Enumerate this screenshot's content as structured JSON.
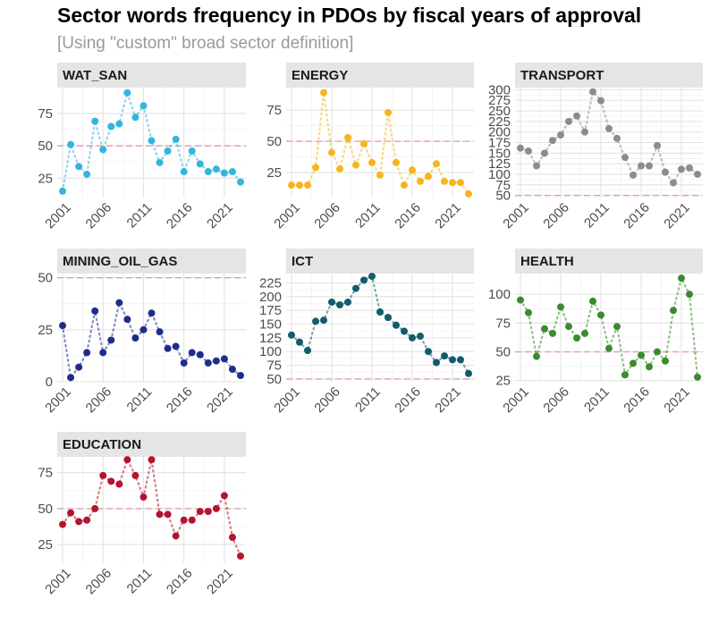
{
  "title": "Sector words frequency in PDOs by fiscal years of approval",
  "subtitle": "[Using \"custom\" broad sector definition]",
  "chart_data": {
    "type": "scatter",
    "x_ticks": [
      "2001",
      "2006",
      "2011",
      "2016",
      "2021"
    ],
    "x_range": [
      2001,
      2023
    ],
    "reference_line_color": "#e0a0b0",
    "panels": [
      {
        "name": "WAT_SAN",
        "color": "#33b5e0",
        "ref": 50,
        "ylim": [
          10,
          95
        ],
        "yticks": [
          25,
          50,
          75
        ],
        "x": [
          2001,
          2002,
          2003,
          2004,
          2005,
          2006,
          2007,
          2008,
          2009,
          2010,
          2011,
          2012,
          2013,
          2014,
          2015,
          2016,
          2017,
          2018,
          2019,
          2020,
          2021,
          2022,
          2023
        ],
        "y": [
          15,
          51,
          34,
          28,
          69,
          47,
          65,
          67,
          91,
          72,
          81,
          54,
          37,
          46,
          55,
          30,
          46,
          36,
          30,
          32,
          29,
          30,
          22
        ]
      },
      {
        "name": "ENERGY",
        "color": "#f5b61c",
        "ref": 50,
        "ylim": [
          5,
          93
        ],
        "yticks": [
          25,
          50,
          75
        ],
        "x": [
          2001,
          2002,
          2003,
          2004,
          2005,
          2006,
          2007,
          2008,
          2009,
          2010,
          2011,
          2012,
          2013,
          2014,
          2015,
          2016,
          2017,
          2018,
          2019,
          2020,
          2021,
          2022,
          2023
        ],
        "y": [
          15,
          15,
          15,
          29,
          89,
          41,
          28,
          53,
          31,
          48,
          33,
          23,
          73,
          33,
          15,
          27,
          18,
          22,
          32,
          18,
          17,
          17,
          8
        ]
      },
      {
        "name": "TRANSPORT",
        "color": "#8c8c8c",
        "ref": 50,
        "ylim": [
          45,
          305
        ],
        "yticks": [
          50,
          75,
          100,
          125,
          150,
          175,
          200,
          225,
          250,
          275,
          300
        ],
        "x": [
          2001,
          2002,
          2003,
          2004,
          2005,
          2006,
          2007,
          2008,
          2009,
          2010,
          2011,
          2012,
          2013,
          2014,
          2015,
          2016,
          2017,
          2018,
          2019,
          2020,
          2021,
          2022,
          2023
        ],
        "y": [
          162,
          155,
          120,
          150,
          180,
          193,
          225,
          238,
          200,
          295,
          274,
          208,
          185,
          140,
          98,
          120,
          120,
          168,
          105,
          80,
          112,
          115,
          100
        ]
      },
      {
        "name": "MINING_OIL_GAS",
        "color": "#1f2d8a",
        "ref": 50,
        "ylim": [
          0,
          52
        ],
        "yticks": [
          0,
          25,
          50
        ],
        "x": [
          2001,
          2002,
          2003,
          2004,
          2005,
          2006,
          2007,
          2008,
          2009,
          2010,
          2011,
          2012,
          2013,
          2014,
          2015,
          2016,
          2017,
          2018,
          2019,
          2020,
          2021,
          2022,
          2023
        ],
        "y": [
          27,
          2,
          7,
          14,
          34,
          14,
          20,
          38,
          30,
          21,
          25,
          33,
          24,
          16,
          17,
          9,
          14,
          13,
          9,
          10,
          11,
          6,
          3
        ]
      },
      {
        "name": "ICT",
        "color": "#135c6c",
        "ref": 50,
        "ylim": [
          45,
          242
        ],
        "yticks": [
          50,
          75,
          100,
          125,
          150,
          175,
          200,
          225
        ],
        "x": [
          2001,
          2002,
          2003,
          2004,
          2005,
          2006,
          2007,
          2008,
          2009,
          2010,
          2011,
          2012,
          2013,
          2014,
          2015,
          2016,
          2017,
          2018,
          2019,
          2020,
          2021,
          2022,
          2023
        ],
        "y": [
          130,
          117,
          102,
          155,
          157,
          190,
          185,
          190,
          215,
          230,
          237,
          172,
          162,
          148,
          137,
          125,
          128,
          100,
          80,
          92,
          85,
          85,
          60
        ]
      },
      {
        "name": "HEALTH",
        "color": "#3a8c2e",
        "ref": 50,
        "ylim": [
          24,
          118
        ],
        "yticks": [
          25,
          50,
          75,
          100
        ],
        "x": [
          2001,
          2002,
          2003,
          2004,
          2005,
          2006,
          2007,
          2008,
          2009,
          2010,
          2011,
          2012,
          2013,
          2014,
          2015,
          2016,
          2017,
          2018,
          2019,
          2020,
          2021,
          2022,
          2023
        ],
        "y": [
          95,
          84,
          46,
          70,
          66,
          89,
          72,
          62,
          66,
          94,
          82,
          53,
          72,
          30,
          40,
          47,
          37,
          50,
          42,
          86,
          114,
          100,
          28
        ]
      },
      {
        "name": "EDUCATION",
        "color": "#b5142e",
        "ref": 50,
        "ylim": [
          12,
          86
        ],
        "yticks": [
          25,
          50,
          75
        ],
        "x": [
          2001,
          2002,
          2003,
          2004,
          2005,
          2006,
          2007,
          2008,
          2009,
          2010,
          2011,
          2012,
          2013,
          2014,
          2015,
          2016,
          2017,
          2018,
          2019,
          2020,
          2021,
          2022,
          2023
        ],
        "y": [
          39,
          47,
          41,
          42,
          50,
          73,
          69,
          67,
          84,
          73,
          58,
          84,
          46,
          46,
          31,
          42,
          42,
          48,
          48,
          50,
          59,
          30,
          17
        ]
      }
    ]
  }
}
